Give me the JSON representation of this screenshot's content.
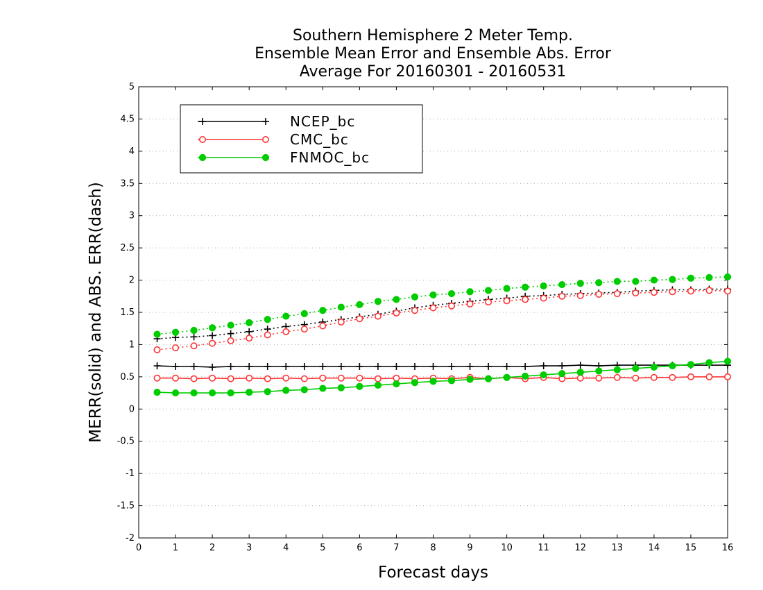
{
  "chart_data": {
    "type": "line",
    "title": [
      "Southern Hemisphere 2 Meter Temp.",
      "Ensemble Mean Error and Ensemble Abs. Error",
      "Average For 20160301 - 20160531"
    ],
    "xlabel": "Forecast days",
    "ylabel": "MERR(solid) and ABS. ERR(dash)",
    "xlim": [
      0,
      16
    ],
    "ylim": [
      -2,
      5
    ],
    "xticks": [
      "0",
      "1",
      "2",
      "3",
      "4",
      "5",
      "6",
      "7",
      "8",
      "9",
      "10",
      "11",
      "12",
      "13",
      "14",
      "15",
      "16"
    ],
    "yticks": [
      "-2",
      "-1.5",
      "-1",
      "-0.5",
      "0",
      "0.5",
      "1",
      "1.5",
      "2",
      "2.5",
      "3",
      "3.5",
      "4",
      "4.5",
      "5"
    ],
    "grid": "horizontal dotted",
    "legend_position": "top-left",
    "x": [
      0.5,
      1,
      1.5,
      2,
      2.5,
      3,
      3.5,
      4,
      4.5,
      5,
      5.5,
      6,
      6.5,
      7,
      7.5,
      8,
      8.5,
      9,
      9.5,
      10,
      10.5,
      11,
      11.5,
      12,
      12.5,
      13,
      13.5,
      14,
      14.5,
      15,
      15.5,
      16
    ],
    "series": [
      {
        "name": "NCEP_bc",
        "color": "#000000",
        "marker": "plus",
        "merr": [
          0.67,
          0.66,
          0.66,
          0.65,
          0.66,
          0.66,
          0.66,
          0.66,
          0.66,
          0.66,
          0.66,
          0.66,
          0.66,
          0.66,
          0.66,
          0.66,
          0.66,
          0.66,
          0.66,
          0.66,
          0.66,
          0.67,
          0.67,
          0.68,
          0.67,
          0.68,
          0.68,
          0.68,
          0.68,
          0.68,
          0.68,
          0.68
        ],
        "abs_err": [
          1.09,
          1.11,
          1.12,
          1.14,
          1.17,
          1.2,
          1.24,
          1.28,
          1.31,
          1.35,
          1.39,
          1.43,
          1.47,
          1.52,
          1.57,
          1.61,
          1.64,
          1.67,
          1.7,
          1.72,
          1.75,
          1.76,
          1.78,
          1.79,
          1.8,
          1.81,
          1.83,
          1.84,
          1.85,
          1.85,
          1.86,
          1.86
        ]
      },
      {
        "name": "CMC_bc",
        "color": "#ff3333",
        "marker": "open-circle",
        "merr": [
          0.48,
          0.48,
          0.47,
          0.48,
          0.47,
          0.48,
          0.47,
          0.48,
          0.47,
          0.48,
          0.48,
          0.48,
          0.47,
          0.48,
          0.47,
          0.48,
          0.47,
          0.49,
          0.47,
          0.49,
          0.47,
          0.49,
          0.47,
          0.48,
          0.48,
          0.49,
          0.48,
          0.49,
          0.49,
          0.5,
          0.5,
          0.5
        ],
        "abs_err": [
          0.92,
          0.95,
          0.98,
          1.02,
          1.06,
          1.1,
          1.15,
          1.2,
          1.24,
          1.29,
          1.35,
          1.4,
          1.44,
          1.49,
          1.53,
          1.57,
          1.6,
          1.63,
          1.66,
          1.68,
          1.7,
          1.72,
          1.75,
          1.76,
          1.78,
          1.79,
          1.8,
          1.81,
          1.82,
          1.83,
          1.84,
          1.83
        ]
      },
      {
        "name": "FNMOC_bc",
        "color": "#00cc00",
        "marker": "filled-circle",
        "merr": [
          0.26,
          0.25,
          0.25,
          0.25,
          0.25,
          0.26,
          0.27,
          0.29,
          0.3,
          0.32,
          0.33,
          0.35,
          0.37,
          0.39,
          0.41,
          0.43,
          0.44,
          0.46,
          0.47,
          0.49,
          0.51,
          0.53,
          0.55,
          0.57,
          0.59,
          0.61,
          0.63,
          0.65,
          0.67,
          0.69,
          0.72,
          0.74
        ],
        "abs_err": [
          1.16,
          1.19,
          1.22,
          1.26,
          1.3,
          1.34,
          1.39,
          1.44,
          1.48,
          1.53,
          1.58,
          1.62,
          1.67,
          1.7,
          1.74,
          1.77,
          1.79,
          1.82,
          1.84,
          1.87,
          1.89,
          1.91,
          1.93,
          1.95,
          1.96,
          1.98,
          1.98,
          2.0,
          2.01,
          2.03,
          2.04,
          2.05
        ]
      }
    ]
  }
}
